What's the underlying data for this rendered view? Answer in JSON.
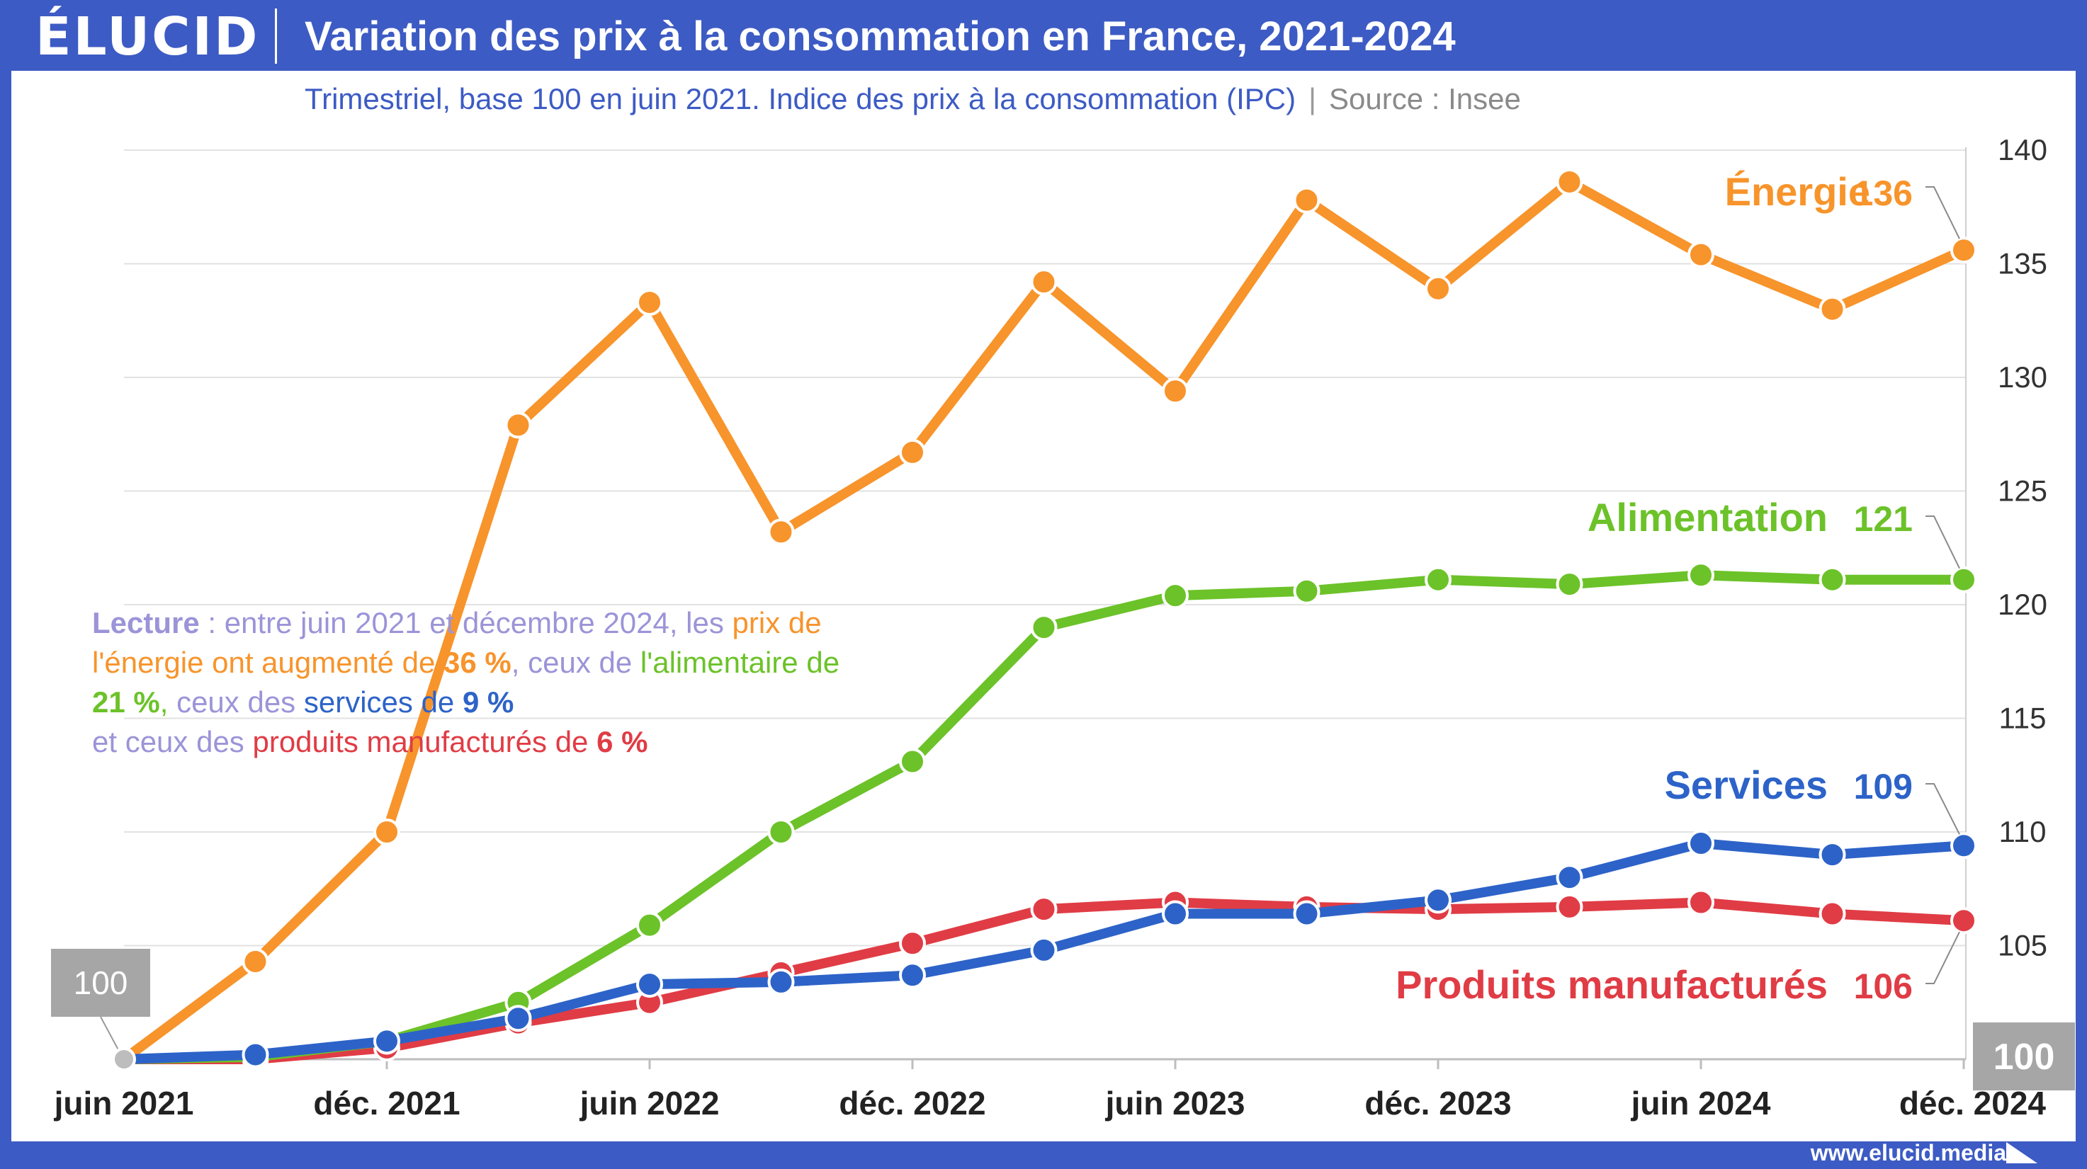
{
  "brand": {
    "logo": "ÉLUCID",
    "url": "www.elucid.media"
  },
  "header": {
    "title": "Variation des prix à la consommation en France, 2021-2024",
    "subtitle": "Trimestriel, base 100 en juin 2021. Indice des prix à la consommation (IPC)",
    "source": "Source : Insee"
  },
  "lecture": {
    "lead": "Lecture",
    "p1": " : entre juin 2021 et décembre 2024, les ",
    "p2": "prix de l'énergie ont augmenté de ",
    "v_energie": "36 %",
    "p3": ", ceux de ",
    "p4": "l'alimentaire de ",
    "v_alim": "21 %",
    "p5": ", ",
    "p6": "ceux des ",
    "p7": "services de ",
    "v_serv": "9 %",
    "p8": "et ceux des ",
    "p9": "produits manufacturés de ",
    "v_prod": "6 %"
  },
  "colors": {
    "energie": "#f7942b",
    "alimentation": "#6cc229",
    "services": "#2d63c8",
    "produits": "#e03c45",
    "base_box": "#a6a6a6",
    "grid": "#e2e2e2"
  },
  "chart_data": {
    "type": "line",
    "title": "Variation des prix à la consommation en France, 2021-2024",
    "x": [
      "juin 2021",
      "sept. 2021",
      "déc. 2021",
      "mars 2022",
      "juin 2022",
      "sept. 2022",
      "déc. 2022",
      "mars 2023",
      "juin 2023",
      "sept. 2023",
      "déc. 2023",
      "mars 2024",
      "juin 2024",
      "sept. 2024",
      "déc. 2024"
    ],
    "x_tick_labels": [
      "juin 2021",
      "déc. 2021",
      "juin 2022",
      "déc. 2022",
      "juin 2023",
      "déc. 2023",
      "juin 2024",
      "déc. 2024"
    ],
    "ylim": [
      100,
      140
    ],
    "y_ticks": [
      105,
      110,
      115,
      120,
      125,
      130,
      135,
      140
    ],
    "y_axis_position": "right",
    "grid": true,
    "base_label": "100",
    "series": [
      {
        "name": "Énergie",
        "end_label": "136",
        "color": "#f7942b",
        "values": [
          100,
          104.3,
          110,
          127.9,
          133.3,
          123.2,
          126.7,
          134.2,
          129.4,
          137.8,
          133.9,
          138.6,
          135.4,
          133.0,
          135.6
        ]
      },
      {
        "name": "Alimentation",
        "end_label": "121",
        "color": "#6cc229",
        "values": [
          100,
          100.1,
          100.8,
          102.5,
          105.9,
          110.0,
          113.1,
          119.0,
          120.4,
          120.6,
          121.1,
          120.9,
          121.3,
          121.1,
          121.1
        ]
      },
      {
        "name": "Services",
        "end_label": "109",
        "color": "#2d63c8",
        "values": [
          100,
          100.2,
          100.8,
          101.8,
          103.3,
          103.4,
          103.7,
          104.8,
          106.4,
          106.4,
          107.0,
          108.0,
          109.5,
          109.0,
          109.4
        ]
      },
      {
        "name": "Produits manufacturés",
        "end_label": "106",
        "color": "#e03c45",
        "values": [
          100,
          100.0,
          100.5,
          101.6,
          102.5,
          103.8,
          105.1,
          106.6,
          106.9,
          106.7,
          106.6,
          106.7,
          106.9,
          106.4,
          106.1
        ]
      }
    ]
  }
}
